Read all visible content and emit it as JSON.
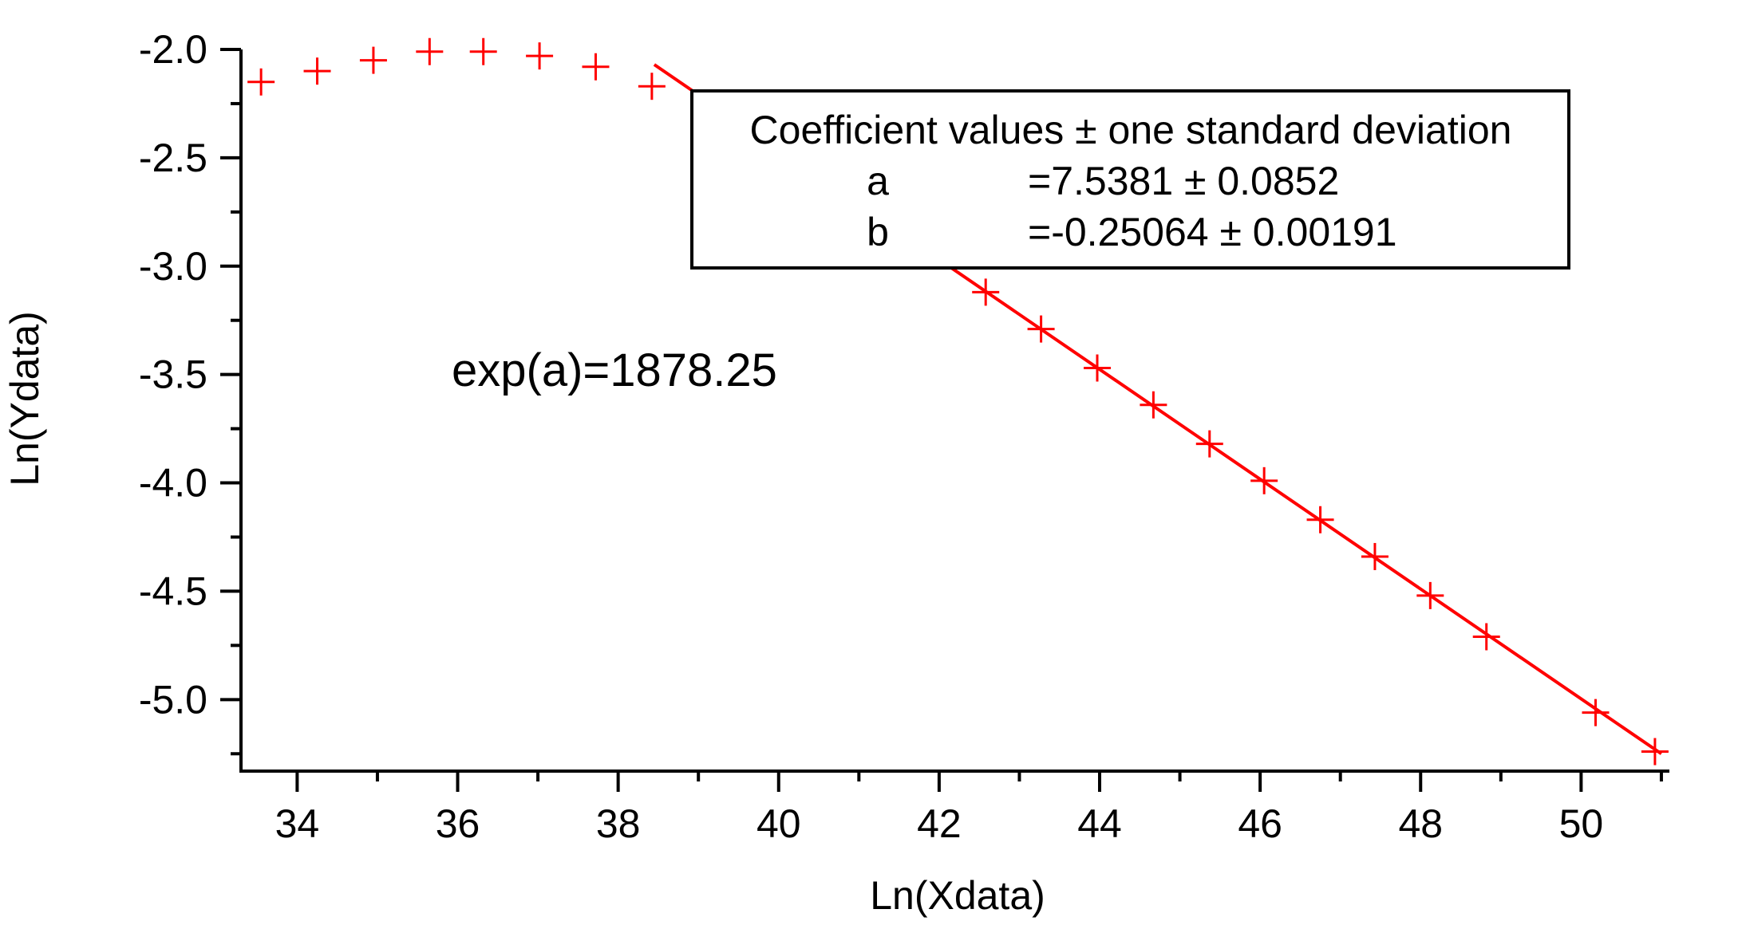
{
  "chart_data": {
    "type": "scatter",
    "title": "",
    "xlabel": "Ln(Xdata)",
    "ylabel": "Ln(Ydata)",
    "xlim": [
      33.3,
      51.1
    ],
    "ylim": [
      -5.33,
      -2.0
    ],
    "xticks": [
      34,
      36,
      38,
      40,
      42,
      44,
      46,
      48,
      50
    ],
    "xtick_labels": [
      "34",
      "36",
      "38",
      "40",
      "42",
      "44",
      "46",
      "48",
      "50"
    ],
    "yticks": [
      -2.0,
      -2.5,
      -3.0,
      -3.5,
      -4.0,
      -4.5,
      -5.0
    ],
    "ytick_labels": [
      "-2.0",
      "-2.5",
      "-3.0",
      "-3.5",
      "-4.0",
      "-4.5",
      "-5.0"
    ],
    "grid": false,
    "colors": {
      "series": "#ff0000",
      "axes": "#000000"
    },
    "series": [
      {
        "marker": "+",
        "x": [
          33.55,
          34.25,
          34.95,
          35.65,
          36.32,
          37.02,
          37.72,
          38.42,
          42.58,
          43.27,
          43.97,
          44.67,
          45.37,
          46.05,
          46.75,
          47.43,
          48.12,
          48.82,
          50.18,
          50.92
        ],
        "y": [
          -2.15,
          -2.1,
          -2.05,
          -2.01,
          -2.01,
          -2.03,
          -2.08,
          -2.17,
          -3.12,
          -3.29,
          -3.47,
          -3.64,
          -3.82,
          -3.99,
          -4.17,
          -4.34,
          -4.52,
          -4.71,
          -5.06,
          -5.24
        ]
      }
    ],
    "fit_line": {
      "x": [
        38.45,
        51.0
      ],
      "y": [
        -2.07,
        -5.25
      ]
    },
    "annotation": {
      "text": "exp(a)=1878.25"
    },
    "coefficient_box": {
      "header": "Coefficient values ± one standard deviation",
      "rows": [
        {
          "name": "a",
          "value": "=7.5381 ± 0.0852"
        },
        {
          "name": "b",
          "value": "=-0.25064 ± 0.00191"
        }
      ]
    }
  }
}
